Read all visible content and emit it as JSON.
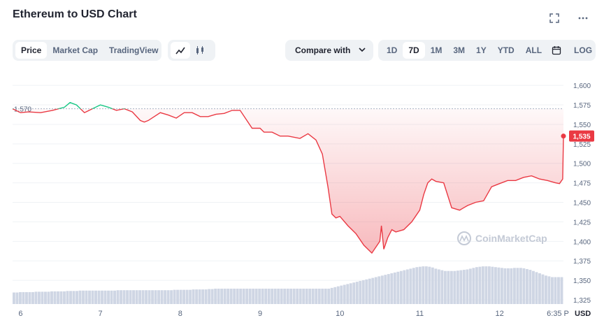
{
  "header": {
    "title": "Ethereum to USD Chart"
  },
  "icons": {
    "expand": "expand-icon",
    "more": "more-icon",
    "line": "line-chart-icon",
    "candle": "candlestick-icon",
    "calendar": "calendar-icon"
  },
  "tabs": [
    {
      "label": "Price",
      "active": true
    },
    {
      "label": "Market Cap",
      "active": false
    },
    {
      "label": "TradingView",
      "active": false
    }
  ],
  "compare_label": "Compare with",
  "ranges": [
    {
      "label": "1D",
      "active": false
    },
    {
      "label": "7D",
      "active": true
    },
    {
      "label": "1M",
      "active": false
    },
    {
      "label": "3M",
      "active": false
    },
    {
      "label": "1Y",
      "active": false
    },
    {
      "label": "YTD",
      "active": false
    },
    {
      "label": "ALL",
      "active": false
    }
  ],
  "log_label": "LOG",
  "watermark": "CoinMarketCap",
  "colors": {
    "up": "#16c784",
    "down": "#ea3943",
    "volume": "#cfd6e4",
    "text": "#58667e"
  },
  "chart_data": {
    "type": "line",
    "reference_value": 1570,
    "reference_label": "1,570",
    "current_value": 1535,
    "current_label": "1,535",
    "ylim": [
      1325,
      1610
    ],
    "y_ticks": [
      "1,600",
      "1,575",
      "1,550",
      "1,525",
      "1,500",
      "1,475",
      "1,450",
      "1,425",
      "1,400",
      "1,375",
      "1,350",
      "1,325"
    ],
    "x_ticks": [
      "6",
      "7",
      "8",
      "9",
      "10",
      "11",
      "12",
      "6:35 P"
    ],
    "currency_label": "USD",
    "series": [
      {
        "x": [
          5.9,
          6.0,
          6.1,
          6.25,
          6.4,
          6.55,
          6.62,
          6.7,
          6.8,
          6.9,
          7.0,
          7.1,
          7.2,
          7.3,
          7.4,
          7.5,
          7.55,
          7.6,
          7.75,
          7.85,
          7.95,
          8.05,
          8.15,
          8.25,
          8.35,
          8.45,
          8.55,
          8.65,
          8.75,
          8.9,
          9.0,
          9.05,
          9.15,
          9.25,
          9.35,
          9.5,
          9.6,
          9.7,
          9.78,
          9.8,
          9.85,
          9.9,
          9.95,
          10.0,
          10.1,
          10.2,
          10.3,
          10.4,
          10.5,
          10.52,
          10.55,
          10.6,
          10.65,
          10.7,
          10.8,
          10.9,
          11.0,
          11.05,
          11.1,
          11.15,
          11.2,
          11.3,
          11.4,
          11.5,
          11.55,
          11.6,
          11.7,
          11.8,
          11.9,
          12.0,
          12.1,
          12.2,
          12.3,
          12.4,
          12.5,
          12.6,
          12.7,
          12.75,
          12.79,
          12.8
        ],
        "y": [
          1570,
          1565,
          1566,
          1565,
          1568,
          1572,
          1578,
          1575,
          1565,
          1570,
          1575,
          1572,
          1568,
          1570,
          1566,
          1555,
          1553,
          1555,
          1565,
          1562,
          1558,
          1565,
          1565,
          1560,
          1560,
          1563,
          1564,
          1568,
          1568,
          1545,
          1545,
          1540,
          1540,
          1535,
          1535,
          1532,
          1538,
          1530,
          1512,
          1500,
          1470,
          1435,
          1430,
          1432,
          1420,
          1410,
          1395,
          1385,
          1400,
          1420,
          1390,
          1405,
          1415,
          1412,
          1415,
          1425,
          1440,
          1460,
          1475,
          1480,
          1477,
          1475,
          1443,
          1440,
          1443,
          1446,
          1450,
          1452,
          1470,
          1474,
          1478,
          1478,
          1482,
          1484,
          1480,
          1478,
          1475,
          1474,
          1480,
          1535
        ]
      }
    ],
    "volume": [
      0.3,
      0.3,
      0.31,
      0.31,
      0.31,
      0.31,
      0.31,
      0.32,
      0.32,
      0.32,
      0.32,
      0.32,
      0.33,
      0.33,
      0.33,
      0.33,
      0.33,
      0.34,
      0.34,
      0.34,
      0.34,
      0.35,
      0.35,
      0.35,
      0.35,
      0.35,
      0.35,
      0.35,
      0.35,
      0.35,
      0.35,
      0.35,
      0.35,
      0.36,
      0.36,
      0.36,
      0.36,
      0.36,
      0.36,
      0.36,
      0.36,
      0.36,
      0.36,
      0.36,
      0.36,
      0.36,
      0.36,
      0.36,
      0.36,
      0.36,
      0.36,
      0.37,
      0.37,
      0.37,
      0.37,
      0.37,
      0.37,
      0.38,
      0.38,
      0.38,
      0.38,
      0.38,
      0.39,
      0.39,
      0.4,
      0.4,
      0.4,
      0.4,
      0.4,
      0.4,
      0.4,
      0.4,
      0.4,
      0.4,
      0.4,
      0.4,
      0.4,
      0.4,
      0.4,
      0.4,
      0.4,
      0.4,
      0.4,
      0.4,
      0.4,
      0.4,
      0.4,
      0.4,
      0.4,
      0.4,
      0.4,
      0.4,
      0.4,
      0.4,
      0.4,
      0.4,
      0.4,
      0.4,
      0.4,
      0.4,
      0.4,
      0.42,
      0.44,
      0.46,
      0.48,
      0.5,
      0.52,
      0.54,
      0.56,
      0.58,
      0.6,
      0.62,
      0.64,
      0.66,
      0.68,
      0.7,
      0.72,
      0.74,
      0.76,
      0.78,
      0.8,
      0.82,
      0.84,
      0.86,
      0.88,
      0.9,
      0.92,
      0.94,
      0.96,
      0.97,
      0.98,
      0.98,
      0.97,
      0.95,
      0.92,
      0.9,
      0.88,
      0.86,
      0.86,
      0.86,
      0.86,
      0.87,
      0.88,
      0.89,
      0.9,
      0.92,
      0.94,
      0.96,
      0.97,
      0.98,
      0.98,
      0.98,
      0.97,
      0.96,
      0.95,
      0.94,
      0.93,
      0.93,
      0.93,
      0.94,
      0.94,
      0.94,
      0.93,
      0.91,
      0.89,
      0.86,
      0.83,
      0.8,
      0.77,
      0.74,
      0.72,
      0.7,
      0.7,
      0.7,
      0.7
    ],
    "grid": true
  }
}
